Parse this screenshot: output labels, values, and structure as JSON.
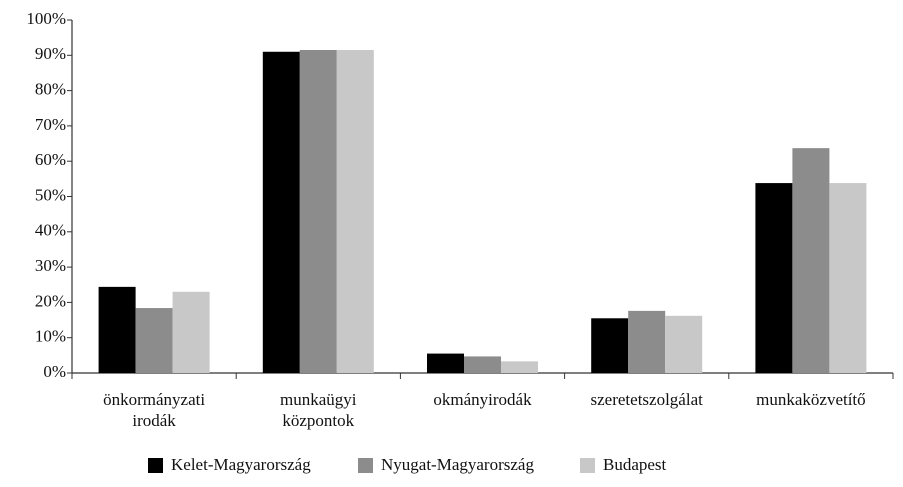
{
  "chart_data": {
    "type": "bar",
    "categories": [
      "önkormányzati\nirodák",
      "munkaügyi\nközpontok",
      "okmányirodák",
      "szeretetszolgálat",
      "munkaközvetítő"
    ],
    "series": [
      {
        "name": "Kelet-Magyarország",
        "color": "#000000",
        "values": [
          24.4,
          91,
          5.5,
          15.5,
          53.8
        ]
      },
      {
        "name": "Nyugat-Magyarország",
        "color": "#8c8c8c",
        "values": [
          18.4,
          91.5,
          4.7,
          17.6,
          63.7
        ]
      },
      {
        "name": "Budapest",
        "color": "#c8c8c8",
        "values": [
          23,
          91.5,
          3.3,
          16.2,
          53.8
        ]
      }
    ],
    "ylim": [
      0,
      100
    ],
    "yticks": [
      {
        "value": 0,
        "label": "0%"
      },
      {
        "value": 10,
        "label": "10%"
      },
      {
        "value": 20,
        "label": "20%"
      },
      {
        "value": 30,
        "label": "30%"
      },
      {
        "value": 40,
        "label": "40%"
      },
      {
        "value": 50,
        "label": "50%"
      },
      {
        "value": 60,
        "label": "60%"
      },
      {
        "value": 70,
        "label": "70%"
      },
      {
        "value": 80,
        "label": "80%"
      },
      {
        "value": 90,
        "label": "90%"
      },
      {
        "value": 100,
        "label": "100%"
      }
    ],
    "legend": "bottom"
  }
}
